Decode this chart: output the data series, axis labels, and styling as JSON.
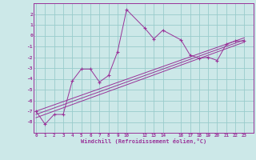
{
  "xlabel": "Windchill (Refroidissement éolien,°C)",
  "bg_color": "#cce8e8",
  "grid_color": "#99cccc",
  "line_color": "#993399",
  "x_ticks": [
    0,
    1,
    2,
    3,
    4,
    5,
    6,
    7,
    8,
    9,
    10,
    12,
    13,
    14,
    16,
    17,
    18,
    19,
    20,
    21,
    22,
    23
  ],
  "x_tick_labels": [
    "0",
    "1",
    "2",
    "3",
    "4",
    "5",
    "6",
    "7",
    "8",
    "9",
    "10",
    "12",
    "13",
    "14",
    "16",
    "17",
    "18",
    "19",
    "20",
    "21",
    "22",
    "23"
  ],
  "ylim": [
    -9,
    3
  ],
  "xlim": [
    -0.3,
    24.0
  ],
  "y_ticks": [
    -8,
    -7,
    -6,
    -5,
    -4,
    -3,
    -2,
    -1,
    0,
    1,
    2
  ],
  "scatter_x": [
    0,
    1,
    2,
    3,
    4,
    5,
    6,
    7,
    8,
    9,
    10,
    12,
    13,
    14,
    16,
    17,
    18,
    19,
    20,
    21,
    22,
    23
  ],
  "scatter_y": [
    -7.0,
    -8.2,
    -7.3,
    -7.3,
    -4.2,
    -3.1,
    -3.1,
    -4.3,
    -3.7,
    -1.5,
    2.4,
    0.7,
    -0.3,
    0.5,
    -0.4,
    -1.8,
    -2.1,
    -2.0,
    -2.3,
    -0.8,
    -0.5,
    -0.5
  ],
  "line1_x": [
    0,
    23
  ],
  "line1_y": [
    -7.6,
    -0.6
  ],
  "line2_x": [
    0,
    23
  ],
  "line2_y": [
    -7.3,
    -0.4
  ],
  "line3_x": [
    0,
    23
  ],
  "line3_y": [
    -7.0,
    -0.2
  ]
}
